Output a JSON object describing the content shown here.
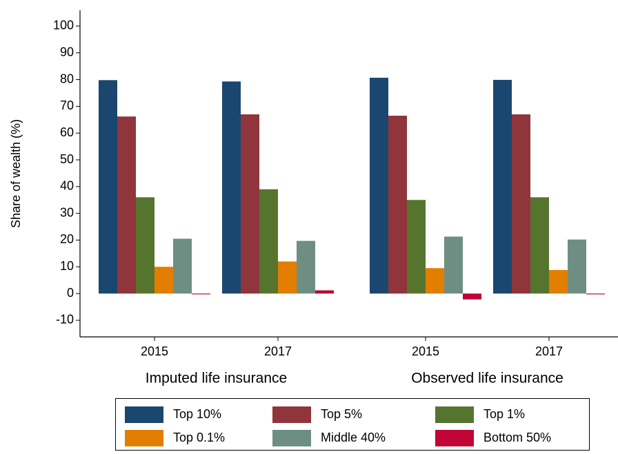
{
  "chart_data": {
    "type": "bar",
    "y_label": "Share of wealth (%)",
    "categories": [
      "2015",
      "2017",
      "2015",
      "2017"
    ],
    "groups": [
      "Imputed life insurance",
      "Observed life insurance"
    ],
    "series": [
      {
        "name": "Top 10%",
        "color": "#1a476f",
        "values": [
          79.8,
          79.3,
          80.7,
          79.9
        ]
      },
      {
        "name": "Top 5%",
        "color": "#90353b",
        "values": [
          66.2,
          67,
          66.5,
          67
        ]
      },
      {
        "name": "Top 1%",
        "color": "#55752f",
        "values": [
          36,
          39,
          35,
          36
        ]
      },
      {
        "name": "Top 0.1%",
        "color": "#e37e00",
        "values": [
          10,
          12,
          9.5,
          8.8
        ]
      },
      {
        "name": "Middle 40%",
        "color": "#6e8e84",
        "values": [
          20.5,
          19.7,
          21.3,
          20.2
        ]
      },
      {
        "name": "Bottom 50%",
        "color": "#c10534",
        "values": [
          -0.3,
          1.2,
          -2.2,
          -0.3
        ]
      }
    ],
    "ylim": [
      -16.2,
      105.9
    ],
    "yticks": [
      -10,
      0,
      10,
      20,
      30,
      40,
      50,
      60,
      70,
      80,
      90,
      100
    ],
    "grid": false
  }
}
